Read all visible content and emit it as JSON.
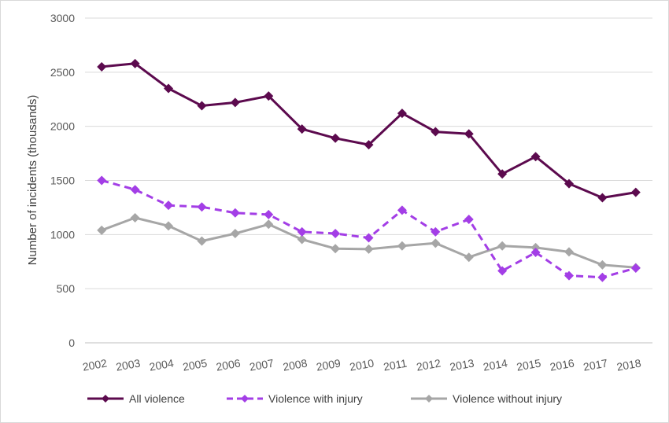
{
  "chart_data": {
    "type": "line",
    "title": "",
    "xlabel": "",
    "ylabel": "Number of incidents (thousands)",
    "ylim": [
      0,
      3000
    ],
    "yticks": [
      0,
      500,
      1000,
      1500,
      2000,
      2500,
      3000
    ],
    "grid": true,
    "legend_position": "bottom",
    "categories": [
      "2002",
      "2003",
      "2004",
      "2005",
      "2006",
      "2007",
      "2008",
      "2009",
      "2010",
      "2011",
      "2012",
      "2013",
      "2014",
      "2015",
      "2016",
      "2017",
      "2018"
    ],
    "series": [
      {
        "name": "All violence",
        "color": "#5c0a4e",
        "dash": "solid",
        "marker": "diamond",
        "values": [
          2550,
          2580,
          2350,
          2190,
          2220,
          2280,
          1975,
          1890,
          1830,
          2120,
          1950,
          1930,
          1560,
          1720,
          1470,
          1340,
          1390
        ]
      },
      {
        "name": "Violence with injury",
        "color": "#a33ee6",
        "dash": "dashed",
        "marker": "diamond",
        "values": [
          1500,
          1415,
          1270,
          1255,
          1200,
          1185,
          1025,
          1010,
          970,
          1225,
          1025,
          1140,
          665,
          835,
          620,
          605,
          690
        ]
      },
      {
        "name": "Violence without injury",
        "color": "#a6a6a6",
        "dash": "solid",
        "marker": "diamond",
        "values": [
          1040,
          1155,
          1080,
          940,
          1010,
          1095,
          955,
          870,
          865,
          895,
          920,
          790,
          895,
          880,
          840,
          720,
          695
        ]
      }
    ]
  }
}
